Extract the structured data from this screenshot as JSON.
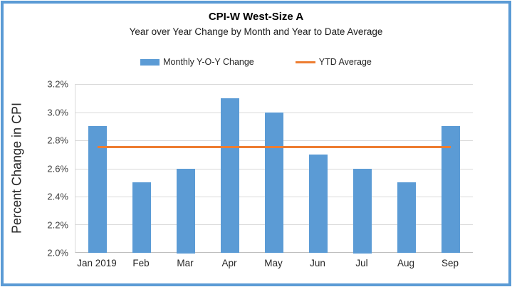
{
  "title": "CPI-W West-Size A",
  "subtitle": "Year over Year Change by Month and Year to Date Average",
  "legend": {
    "items": [
      {
        "label": "Monthly Y-O-Y Change",
        "swatch": "bar-swatch",
        "color": "#5B9BD5"
      },
      {
        "label": "YTD Average",
        "swatch": "line-swatch",
        "color": "#ED7D31"
      }
    ]
  },
  "colors": {
    "bar": "#5B9BD5",
    "line": "#ED7D31",
    "frame_border": "#5B9BD5",
    "gridline": "#D9D9D9",
    "axis_line": "#BFBFBF"
  },
  "chart_data": {
    "type": "bar",
    "title": "CPI-W West-Size A",
    "subtitle": "Year over Year Change by Month and Year to Date Average",
    "categories": [
      "Jan 2019",
      "Feb",
      "Mar",
      "Apr",
      "May",
      "Jun",
      "Jul",
      "Aug",
      "Sep"
    ],
    "series": [
      {
        "name": "Monthly Y-O-Y Change",
        "type": "bar",
        "color": "#5B9BD5",
        "values": [
          2.9,
          2.5,
          2.6,
          3.1,
          3.0,
          2.7,
          2.6,
          2.5,
          2.9
        ]
      },
      {
        "name": "YTD Average",
        "type": "line",
        "color": "#ED7D31",
        "constant_value": 2.75
      }
    ],
    "xlabel": "",
    "ylabel": "Percent Change in CPI",
    "ylim": [
      2.0,
      3.2
    ],
    "ytick_step": 0.2,
    "ytick_labels": [
      "2.0%",
      "2.2%",
      "2.4%",
      "2.6%",
      "2.8%",
      "3.0%",
      "3.2%"
    ],
    "grid": true,
    "legend_position": "top"
  }
}
